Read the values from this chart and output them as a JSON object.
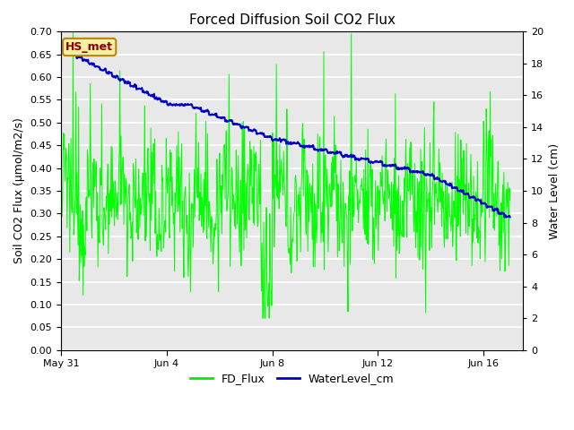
{
  "title": "Forced Diffusion Soil CO2 Flux",
  "ylabel_left": "Soil CO2 Flux (μmol/m2/s)",
  "ylabel_right": "Water Level (cm)",
  "ylim_left": [
    0.0,
    0.7
  ],
  "ylim_right": [
    0,
    20
  ],
  "yticks_left": [
    0.0,
    0.05,
    0.1,
    0.15,
    0.2,
    0.25,
    0.3,
    0.35,
    0.4,
    0.45,
    0.5,
    0.55,
    0.6,
    0.65,
    0.7
  ],
  "yticks_right": [
    0,
    2,
    4,
    6,
    8,
    10,
    12,
    14,
    16,
    18,
    20
  ],
  "plot_bg_color": "#e8e8e8",
  "fig_bg_color": "#ffffff",
  "grid_color": "#ffffff",
  "fd_flux_color": "#00ff00",
  "water_level_color": "#0000cc",
  "annotation_text": "HS_met",
  "annotation_bg": "#f5f0a0",
  "annotation_border": "#b8860b",
  "annotation_text_color": "#8b0000",
  "legend_fd_color": "#00ee00",
  "legend_water_color": "#0000cc",
  "xtick_labels": [
    "May 31",
    "Jun 4",
    "Jun 8",
    "Jun 12",
    "Jun 16"
  ],
  "xtick_positions": [
    0,
    4,
    8,
    12,
    16
  ],
  "xlim": [
    0,
    17.5
  ]
}
